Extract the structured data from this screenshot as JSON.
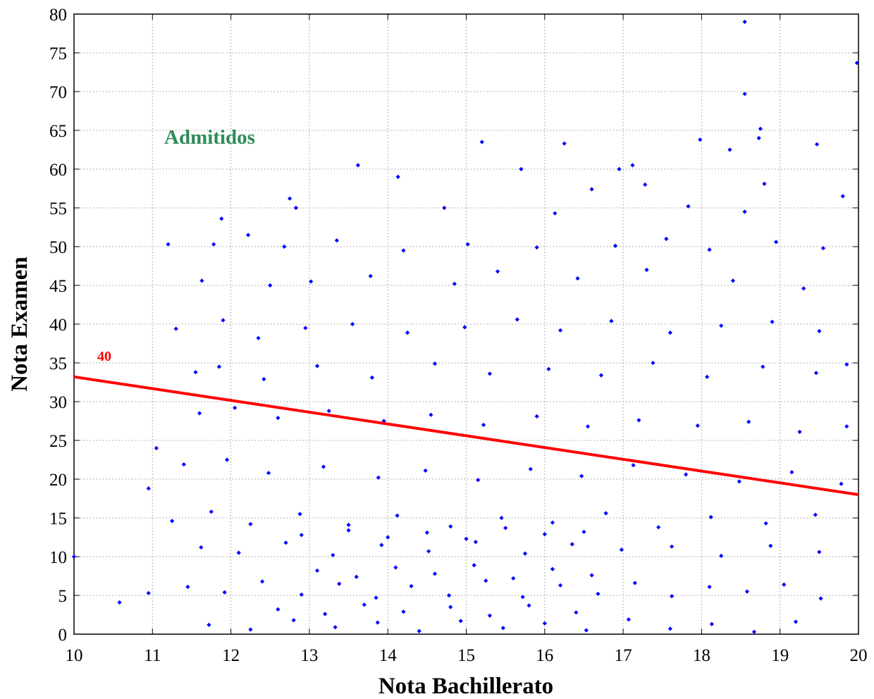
{
  "chart_data": {
    "type": "scatter",
    "title": "",
    "xlabel": "Nota Bachillerato",
    "ylabel": "Nota Examen",
    "xlim": [
      10,
      20
    ],
    "ylim": [
      0,
      80
    ],
    "xticks": [
      "10",
      "11",
      "12",
      "13",
      "14",
      "15",
      "16",
      "17",
      "18",
      "19",
      "20"
    ],
    "yticks": [
      "0",
      "5",
      "10",
      "15",
      "20",
      "25",
      "30",
      "35",
      "40",
      "45",
      "50",
      "55",
      "60",
      "65",
      "70",
      "75",
      "80"
    ],
    "grid": true,
    "marker_color": "#0000ff",
    "line_color": "#ff0000",
    "region_label": "Admitidos",
    "region_label_color": "#2e8b57",
    "line_label": "40",
    "threshold_line": {
      "x": [
        10,
        20
      ],
      "y": [
        33.2,
        18.0
      ]
    },
    "series": [
      {
        "points": [
          [
            18.55,
            79
          ],
          [
            19.98,
            73.7
          ],
          [
            18.55,
            69.7
          ],
          [
            18.75,
            65.2
          ],
          [
            18.73,
            64
          ],
          [
            17.98,
            63.8
          ],
          [
            15.2,
            63.5
          ],
          [
            16.25,
            63.3
          ],
          [
            19.47,
            63.2
          ],
          [
            18.36,
            62.5
          ],
          [
            17.12,
            60.5
          ],
          [
            13.62,
            60.5
          ],
          [
            16.95,
            60.0
          ],
          [
            15.7,
            60.0
          ],
          [
            14.13,
            59.0
          ],
          [
            18.8,
            58.1
          ],
          [
            17.28,
            58.0
          ],
          [
            16.6,
            57.4
          ],
          [
            12.75,
            56.2
          ],
          [
            11.88,
            53.6
          ],
          [
            12.83,
            55.0
          ],
          [
            14.72,
            55.0
          ],
          [
            16.13,
            54.3
          ],
          [
            17.83,
            55.2
          ],
          [
            18.55,
            54.5
          ],
          [
            19.8,
            56.5
          ],
          [
            11.2,
            50.3
          ],
          [
            11.78,
            50.3
          ],
          [
            12.22,
            51.5
          ],
          [
            12.68,
            50.0
          ],
          [
            13.35,
            50.8
          ],
          [
            14.2,
            49.5
          ],
          [
            15.02,
            50.3
          ],
          [
            15.9,
            49.9
          ],
          [
            16.9,
            50.1
          ],
          [
            17.55,
            51.0
          ],
          [
            18.1,
            49.6
          ],
          [
            18.95,
            50.6
          ],
          [
            19.55,
            49.8
          ],
          [
            11.63,
            45.6
          ],
          [
            12.5,
            45.0
          ],
          [
            13.02,
            45.5
          ],
          [
            13.78,
            46.2
          ],
          [
            14.85,
            45.2
          ],
          [
            15.4,
            46.8
          ],
          [
            16.42,
            45.9
          ],
          [
            17.3,
            47.0
          ],
          [
            18.4,
            45.6
          ],
          [
            19.3,
            44.6
          ],
          [
            11.3,
            39.4
          ],
          [
            11.9,
            40.5
          ],
          [
            12.35,
            38.2
          ],
          [
            12.95,
            39.5
          ],
          [
            13.55,
            40.0
          ],
          [
            14.25,
            38.9
          ],
          [
            14.98,
            39.6
          ],
          [
            15.65,
            40.6
          ],
          [
            16.2,
            39.2
          ],
          [
            16.85,
            40.4
          ],
          [
            17.6,
            38.9
          ],
          [
            18.25,
            39.8
          ],
          [
            18.9,
            40.3
          ],
          [
            19.5,
            39.1
          ],
          [
            11.55,
            33.8
          ],
          [
            11.85,
            34.5
          ],
          [
            12.42,
            32.9
          ],
          [
            13.1,
            34.6
          ],
          [
            13.8,
            33.1
          ],
          [
            14.6,
            34.9
          ],
          [
            15.3,
            33.6
          ],
          [
            16.05,
            34.2
          ],
          [
            16.72,
            33.4
          ],
          [
            17.38,
            35.0
          ],
          [
            18.07,
            33.2
          ],
          [
            18.78,
            34.5
          ],
          [
            19.46,
            33.7
          ],
          [
            19.85,
            34.8
          ],
          [
            11.05,
            24.0
          ],
          [
            11.6,
            28.5
          ],
          [
            12.05,
            29.2
          ],
          [
            12.6,
            27.9
          ],
          [
            13.25,
            28.8
          ],
          [
            13.95,
            27.5
          ],
          [
            14.55,
            28.3
          ],
          [
            15.22,
            27.0
          ],
          [
            15.9,
            28.1
          ],
          [
            16.55,
            26.8
          ],
          [
            17.2,
            27.6
          ],
          [
            17.95,
            26.9
          ],
          [
            18.6,
            27.4
          ],
          [
            19.25,
            26.1
          ],
          [
            19.85,
            26.8
          ],
          [
            10.95,
            18.8
          ],
          [
            11.4,
            21.9
          ],
          [
            11.95,
            22.5
          ],
          [
            12.48,
            20.8
          ],
          [
            13.18,
            21.6
          ],
          [
            13.88,
            20.2
          ],
          [
            14.48,
            21.1
          ],
          [
            15.15,
            19.9
          ],
          [
            15.82,
            21.3
          ],
          [
            16.47,
            20.4
          ],
          [
            17.13,
            21.8
          ],
          [
            17.8,
            20.6
          ],
          [
            18.48,
            19.7
          ],
          [
            19.15,
            20.9
          ],
          [
            19.78,
            19.4
          ],
          [
            11.25,
            14.6
          ],
          [
            11.75,
            15.8
          ],
          [
            12.25,
            14.2
          ],
          [
            12.88,
            15.5
          ],
          [
            13.5,
            14.1
          ],
          [
            14.12,
            15.3
          ],
          [
            14.8,
            13.9
          ],
          [
            15.45,
            15.0
          ],
          [
            16.1,
            14.4
          ],
          [
            16.78,
            15.6
          ],
          [
            17.45,
            13.8
          ],
          [
            18.12,
            15.1
          ],
          [
            18.82,
            14.3
          ],
          [
            19.45,
            15.4
          ],
          [
            10.0,
            10.0
          ],
          [
            11.62,
            11.2
          ],
          [
            12.1,
            10.5
          ],
          [
            12.7,
            11.8
          ],
          [
            13.3,
            10.2
          ],
          [
            13.92,
            11.5
          ],
          [
            14.52,
            10.7
          ],
          [
            15.12,
            11.9
          ],
          [
            15.75,
            10.4
          ],
          [
            16.35,
            11.6
          ],
          [
            16.98,
            10.9
          ],
          [
            17.62,
            11.3
          ],
          [
            18.25,
            10.1
          ],
          [
            18.88,
            11.4
          ],
          [
            19.5,
            10.6
          ],
          [
            10.58,
            4.1
          ],
          [
            10.95,
            5.3
          ],
          [
            11.45,
            6.1
          ],
          [
            11.92,
            5.4
          ],
          [
            12.4,
            6.8
          ],
          [
            12.9,
            5.1
          ],
          [
            13.38,
            6.5
          ],
          [
            13.85,
            4.7
          ],
          [
            14.3,
            6.2
          ],
          [
            14.78,
            5.0
          ],
          [
            15.25,
            6.9
          ],
          [
            15.72,
            4.8
          ],
          [
            16.2,
            6.3
          ],
          [
            16.68,
            5.2
          ],
          [
            17.15,
            6.6
          ],
          [
            17.62,
            4.9
          ],
          [
            18.1,
            6.1
          ],
          [
            18.58,
            5.5
          ],
          [
            19.05,
            6.4
          ],
          [
            19.52,
            4.6
          ],
          [
            11.72,
            1.2
          ],
          [
            12.25,
            0.6
          ],
          [
            12.8,
            1.8
          ],
          [
            13.33,
            0.9
          ],
          [
            13.87,
            1.5
          ],
          [
            14.4,
            0.4
          ],
          [
            14.93,
            1.7
          ],
          [
            15.47,
            0.8
          ],
          [
            16.0,
            1.4
          ],
          [
            16.53,
            0.5
          ],
          [
            17.07,
            1.9
          ],
          [
            17.6,
            0.7
          ],
          [
            18.13,
            1.3
          ],
          [
            18.67,
            0.3
          ],
          [
            19.2,
            1.6
          ],
          [
            13.1,
            8.2
          ],
          [
            13.6,
            7.4
          ],
          [
            14.1,
            8.6
          ],
          [
            14.6,
            7.8
          ],
          [
            15.1,
            8.9
          ],
          [
            15.6,
            7.2
          ],
          [
            16.1,
            8.4
          ],
          [
            16.6,
            7.6
          ],
          [
            12.6,
            3.2
          ],
          [
            13.2,
            2.6
          ],
          [
            13.7,
            3.8
          ],
          [
            14.2,
            2.9
          ],
          [
            14.8,
            3.5
          ],
          [
            15.3,
            2.4
          ],
          [
            15.8,
            3.7
          ],
          [
            16.4,
            2.8
          ],
          [
            12.9,
            12.8
          ],
          [
            13.5,
            13.4
          ],
          [
            14.0,
            12.5
          ],
          [
            14.5,
            13.1
          ],
          [
            15.0,
            12.3
          ],
          [
            15.5,
            13.7
          ],
          [
            16.0,
            12.9
          ],
          [
            16.5,
            13.2
          ]
        ]
      }
    ]
  }
}
